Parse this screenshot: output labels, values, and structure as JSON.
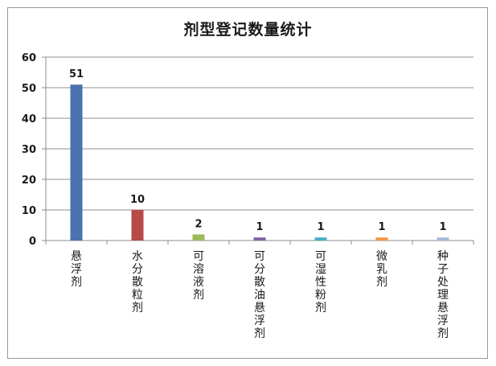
{
  "chart_data": {
    "type": "bar",
    "title": "剂型登记数量统计",
    "xlabel": "",
    "ylabel": "",
    "ylim": [
      0,
      60
    ],
    "yticks": [
      0,
      10,
      20,
      30,
      40,
      50,
      60
    ],
    "grid": true,
    "legend": "none",
    "categories": [
      "悬浮剂",
      "水分散粒剂",
      "可溶液剂",
      "可分散油悬浮剂",
      "可湿性粉剂",
      "微乳剂",
      "种子处理悬浮剂"
    ],
    "values": [
      51,
      10,
      2,
      1,
      1,
      1,
      1
    ],
    "colors": [
      "#4a72b0",
      "#b84a45",
      "#9bbb59",
      "#7f62a4",
      "#4bacc6",
      "#f79646",
      "#a6b9d8"
    ]
  }
}
